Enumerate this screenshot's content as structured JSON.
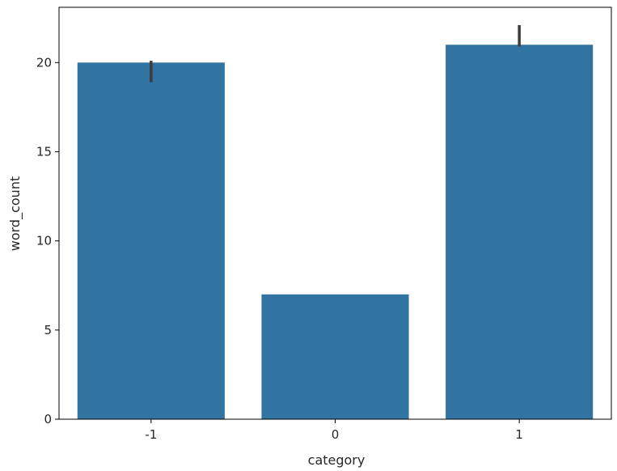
{
  "chart_data": {
    "type": "bar",
    "title": "",
    "xlabel": "category",
    "ylabel": "word_count",
    "categories": [
      "-1",
      "0",
      "1"
    ],
    "values": [
      20,
      7,
      21
    ],
    "error_bars": [
      {
        "low": 18.9,
        "high": 20.1
      },
      null,
      {
        "low": 20.9,
        "high": 22.1
      }
    ],
    "ylim": [
      0,
      23.1
    ],
    "yticks": [
      0,
      5,
      10,
      15,
      20
    ],
    "ytick_labels": [
      "0",
      "5",
      "10",
      "15",
      "20"
    ],
    "colors": {
      "bar": "#3274a1",
      "errorbar": "#3d3d3d",
      "axis": "#000000"
    },
    "grid": false,
    "legend": "none"
  }
}
